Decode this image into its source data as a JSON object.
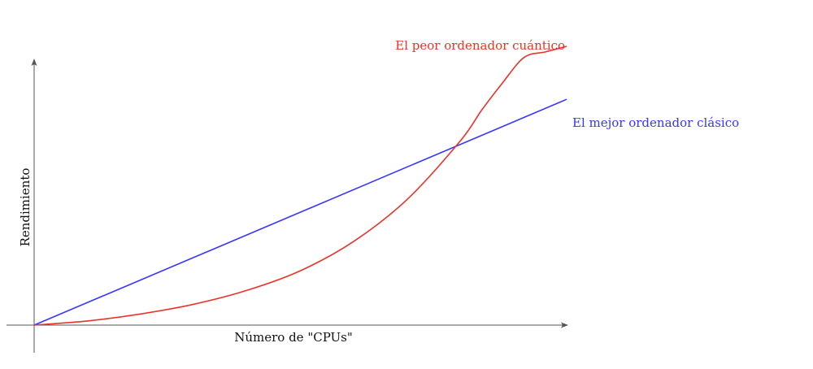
{
  "chart_data": {
    "type": "line",
    "xlabel": "Número de \"CPUs\"",
    "ylabel": "Rendimiento",
    "grid": false,
    "legend": "inline labels at line ends",
    "xlim": [
      0,
      1
    ],
    "ylim": [
      0,
      1
    ],
    "series": [
      {
        "name": "El mejor ordenador clásico",
        "color": "#3535ff",
        "x": [
          0,
          1
        ],
        "y": [
          0,
          0.81
        ]
      },
      {
        "name": "El peor ordenador cuántico",
        "color": "#e8332a",
        "x": [
          0,
          0.1,
          0.2,
          0.3,
          0.4,
          0.5,
          0.6,
          0.7,
          0.8,
          0.84,
          0.88,
          0.92,
          0.96,
          1.0
        ],
        "y": [
          0,
          0.015,
          0.04,
          0.075,
          0.125,
          0.195,
          0.3,
          0.45,
          0.66,
          0.77,
          0.87,
          0.96,
          0.98,
          1.0
        ]
      }
    ]
  }
}
